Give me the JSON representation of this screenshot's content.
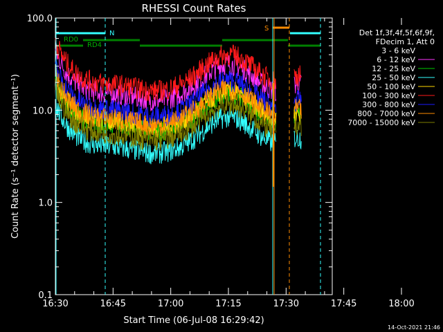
{
  "chart_data": {
    "type": "line",
    "title": "RHESSI Count Rates",
    "xlabel": "Start Time (06-Jul-08 16:29:42)",
    "ylabel": "Count Rate (s⁻¹ detector segment⁻¹)",
    "ylog": true,
    "ylim": [
      0.1,
      100.0
    ],
    "xlim_minutes": [
      0,
      72
    ],
    "x_ticks": [
      "16:30",
      "16:45",
      "17:00",
      "17:15",
      "17:30",
      "17:45",
      "18:00"
    ],
    "y_ticks": [
      "0.1",
      "1.0",
      "10.0",
      "100.0"
    ],
    "legend_header": [
      "Det 1f,3f,4f,5f,6f,9f,",
      "FDecim 1, Att 0"
    ],
    "legend_position": "right",
    "series": [
      {
        "name": "3 - 6 keV",
        "color": "#000000",
        "base": 6.0
      },
      {
        "name": "6 - 12 keV",
        "color": "#ff33ff",
        "base": 15.0
      },
      {
        "name": "12 - 25 keV",
        "color": "#00cc00",
        "base": 7.0
      },
      {
        "name": "25 - 50 keV",
        "color": "#33ffff",
        "base": 4.0
      },
      {
        "name": "50 - 100 keV",
        "color": "#ffd700",
        "base": 7.5
      },
      {
        "name": "100 - 300 keV",
        "color": "#ff1a1a",
        "base": 19.0
      },
      {
        "name": "300 - 800 keV",
        "color": "#1a1aff",
        "base": 10.0
      },
      {
        "name": "800 - 7000 keV",
        "color": "#ff8c00",
        "base": 8.0
      },
      {
        "name": "7000 - 15000 keV",
        "color": "#808000",
        "base": 5.5
      }
    ],
    "annotations": {
      "rd_labels": [
        "RD0",
        "RD4"
      ],
      "n_label": "N",
      "s_label": "S",
      "n_time_min": 13.3,
      "s_time_min": 57.9
    }
  },
  "footer": {
    "timestamp": "14-Oct-2021 21:46"
  },
  "colors": {
    "cyan": "#33ffff",
    "orange": "#ff8c00",
    "green": "#008000",
    "frame": "#ffffff"
  }
}
